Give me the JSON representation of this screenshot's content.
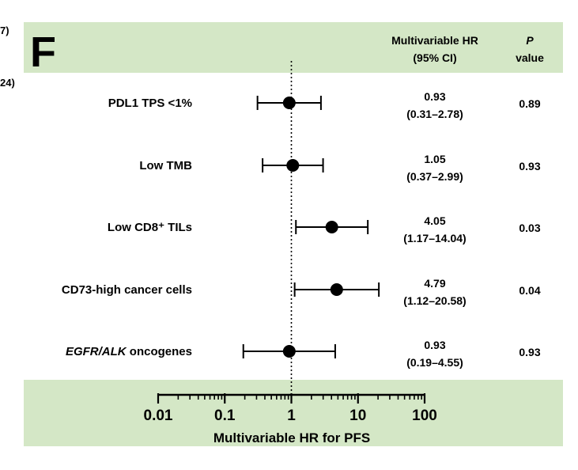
{
  "panel_label": "F",
  "edge_fragments": [
    "7)",
    "24)"
  ],
  "headers": {
    "hr_line1": "Multivariable HR",
    "hr_line2": "(95% CI)",
    "p_line1": "P",
    "p_line2": "value"
  },
  "colors": {
    "band": "#d4e7c6",
    "ink": "#000000"
  },
  "chart_data": {
    "type": "forest",
    "xscale": "log",
    "xlim": [
      0.01,
      100
    ],
    "reference_line": 1,
    "xlabel": "Multivariable HR for PFS",
    "xticks": [
      {
        "value": 0.01,
        "label": "0.01"
      },
      {
        "value": 0.1,
        "label": "0.1"
      },
      {
        "value": 1,
        "label": "1"
      },
      {
        "value": 10,
        "label": "10"
      },
      {
        "value": 100,
        "label": "100"
      }
    ],
    "rows": [
      {
        "label": "PDL1 TPS <1%",
        "hr": 0.93,
        "lo": 0.31,
        "hi": 2.78,
        "hr_text": "0.93",
        "ci_text": "(0.31–2.78)",
        "p": "0.89"
      },
      {
        "label": "Low TMB",
        "hr": 1.05,
        "lo": 0.37,
        "hi": 2.99,
        "hr_text": "1.05",
        "ci_text": "(0.37–2.99)",
        "p": "0.93"
      },
      {
        "label": "Low CD8⁺ TILs",
        "hr": 4.05,
        "lo": 1.17,
        "hi": 14.04,
        "hr_text": "4.05",
        "ci_text": "(1.17–14.04)",
        "p": "0.03"
      },
      {
        "label": "CD73-high cancer cells",
        "hr": 4.79,
        "lo": 1.12,
        "hi": 20.58,
        "hr_text": "4.79",
        "ci_text": "(1.12–20.58)",
        "p": "0.04"
      },
      {
        "label_italic": "EGFR/ALK",
        "label": " oncogenes",
        "hr": 0.93,
        "lo": 0.19,
        "hi": 4.55,
        "hr_text": "0.93",
        "ci_text": "(0.19–4.55)",
        "p": "0.93"
      }
    ]
  }
}
